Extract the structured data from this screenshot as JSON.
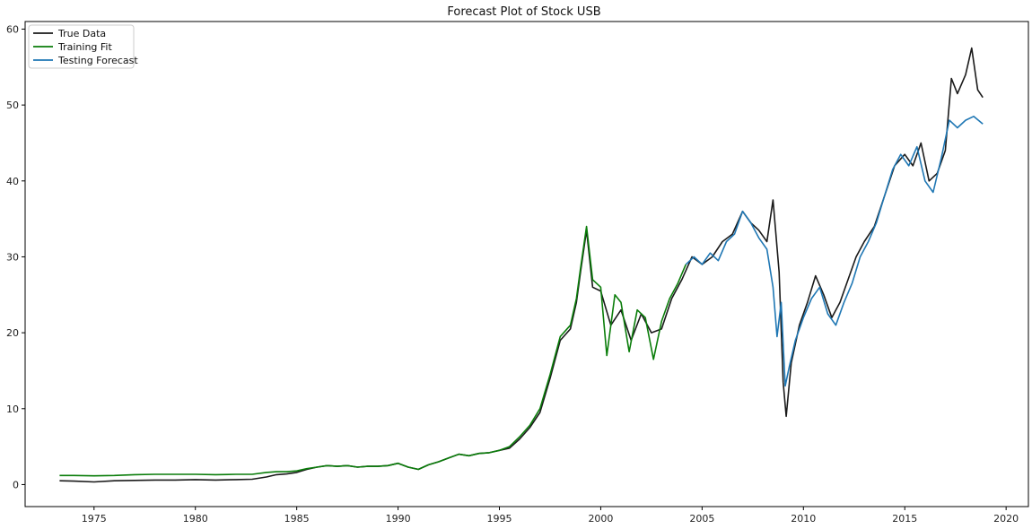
{
  "chart_data": {
    "type": "line",
    "title": "Forecast Plot of Stock USB",
    "xlabel": "",
    "ylabel": "",
    "xlim": [
      1971.6,
      2021.1
    ],
    "ylim": [
      -2.9,
      61.0
    ],
    "xticks": [
      1975,
      1980,
      1985,
      1990,
      1995,
      2000,
      2005,
      2010,
      2015,
      2020
    ],
    "yticks": [
      0,
      10,
      20,
      30,
      40,
      50,
      60
    ],
    "grid": false,
    "legend": {
      "position": "top-left",
      "entries": [
        "True Data",
        "Training Fit",
        "Testing Forecast"
      ]
    },
    "series": [
      {
        "name": "True Data",
        "color": "#1a1a1a",
        "x": [
          1973.3,
          1974.0,
          1975.0,
          1976.0,
          1977.0,
          1978.0,
          1979.0,
          1980.0,
          1981.0,
          1982.0,
          1982.8,
          1983.5,
          1984.0,
          1984.5,
          1985.0,
          1985.5,
          1986.0,
          1986.5,
          1987.0,
          1987.5,
          1988.0,
          1988.5,
          1989.0,
          1989.5,
          1990.0,
          1990.5,
          1991.0,
          1991.5,
          1992.0,
          1992.5,
          1993.0,
          1993.5,
          1994.0,
          1994.5,
          1995.0,
          1995.5,
          1996.0,
          1996.5,
          1997.0,
          1997.5,
          1998.0,
          1998.5,
          1998.8,
          1999.0,
          1999.3,
          1999.6,
          2000.0,
          2000.5,
          2001.0,
          2001.5,
          2002.0,
          2002.5,
          2003.0,
          2003.5,
          2004.0,
          2004.5,
          2005.0,
          2005.5,
          2006.0,
          2006.5,
          2007.0,
          2007.4,
          2007.8,
          2008.2,
          2008.5,
          2008.8,
          2009.0,
          2009.15,
          2009.4,
          2009.8,
          2010.2,
          2010.6,
          2011.0,
          2011.4,
          2011.8,
          2012.2,
          2012.6,
          2013.0,
          2013.5,
          2014.0,
          2014.5,
          2015.0,
          2015.4,
          2015.8,
          2016.2,
          2016.6,
          2017.0,
          2017.3,
          2017.6,
          2018.0,
          2018.3,
          2018.6,
          2018.85
        ],
        "y": [
          0.5,
          0.45,
          0.35,
          0.5,
          0.55,
          0.6,
          0.6,
          0.65,
          0.6,
          0.65,
          0.7,
          1.0,
          1.3,
          1.4,
          1.6,
          2.0,
          2.3,
          2.5,
          2.4,
          2.5,
          2.3,
          2.4,
          2.4,
          2.5,
          2.8,
          2.3,
          2.0,
          2.6,
          3.0,
          3.5,
          4.0,
          3.8,
          4.1,
          4.2,
          4.5,
          4.8,
          6.0,
          7.5,
          9.5,
          14.0,
          19.0,
          20.5,
          24.0,
          28.0,
          33.5,
          26.0,
          25.5,
          21.0,
          23.0,
          19.0,
          22.5,
          20.0,
          20.5,
          24.5,
          27.0,
          30.0,
          29.0,
          30.0,
          32.0,
          33.0,
          36.0,
          34.5,
          33.5,
          32.0,
          37.5,
          28.0,
          13.5,
          9.0,
          16.0,
          21.0,
          24.0,
          27.5,
          25.0,
          22.0,
          24.0,
          27.0,
          30.0,
          32.0,
          34.0,
          38.0,
          42.0,
          43.5,
          42.0,
          45.0,
          40.0,
          41.0,
          44.0,
          53.5,
          51.5,
          54.0,
          57.5,
          52.0,
          51.0
        ]
      },
      {
        "name": "Training Fit",
        "color": "#0a7d0a",
        "x": [
          1973.3,
          1974.0,
          1975.0,
          1976.0,
          1977.0,
          1978.0,
          1979.0,
          1980.0,
          1981.0,
          1982.0,
          1982.8,
          1983.5,
          1984.0,
          1984.5,
          1985.0,
          1985.5,
          1986.0,
          1986.5,
          1987.0,
          1987.5,
          1988.0,
          1988.5,
          1989.0,
          1989.5,
          1990.0,
          1990.5,
          1991.0,
          1991.5,
          1992.0,
          1992.5,
          1993.0,
          1993.5,
          1994.0,
          1994.5,
          1995.0,
          1995.5,
          1996.0,
          1996.5,
          1997.0,
          1997.5,
          1998.0,
          1998.5,
          1998.8,
          1999.0,
          1999.3,
          1999.6,
          2000.0,
          2000.3,
          2000.7,
          2001.0,
          2001.4,
          2001.8,
          2002.2,
          2002.6,
          2003.0,
          2003.4,
          2003.8,
          2004.2
        ],
        "y": [
          1.2,
          1.2,
          1.15,
          1.2,
          1.3,
          1.35,
          1.35,
          1.35,
          1.3,
          1.35,
          1.35,
          1.6,
          1.7,
          1.7,
          1.8,
          2.1,
          2.3,
          2.5,
          2.4,
          2.5,
          2.3,
          2.4,
          2.4,
          2.5,
          2.8,
          2.3,
          2.0,
          2.6,
          3.0,
          3.5,
          4.0,
          3.8,
          4.1,
          4.2,
          4.5,
          5.0,
          6.3,
          7.8,
          10.0,
          14.5,
          19.5,
          21.0,
          24.5,
          28.5,
          34.0,
          27.0,
          26.0,
          17.0,
          25.0,
          24.0,
          17.5,
          23.0,
          22.0,
          16.5,
          21.5,
          24.5,
          26.5,
          29.0
        ]
      },
      {
        "name": "Testing Forecast",
        "color": "#1f77b4",
        "x": [
          2004.2,
          2004.6,
          2005.0,
          2005.4,
          2005.8,
          2006.2,
          2006.6,
          2007.0,
          2007.4,
          2007.8,
          2008.2,
          2008.5,
          2008.7,
          2008.9,
          2009.1,
          2009.3,
          2009.6,
          2010.0,
          2010.4,
          2010.8,
          2011.2,
          2011.6,
          2012.0,
          2012.4,
          2012.8,
          2013.2,
          2013.6,
          2014.0,
          2014.4,
          2014.8,
          2015.2,
          2015.6,
          2016.0,
          2016.4,
          2016.8,
          2017.2,
          2017.6,
          2018.0,
          2018.4,
          2018.85
        ],
        "y": [
          29.0,
          30.0,
          29.0,
          30.5,
          29.5,
          32.0,
          33.0,
          36.0,
          34.5,
          32.5,
          31.0,
          26.0,
          19.5,
          24.0,
          13.0,
          15.5,
          19.0,
          22.0,
          24.5,
          26.0,
          22.5,
          21.0,
          24.0,
          26.5,
          30.0,
          32.0,
          34.5,
          38.0,
          41.5,
          43.5,
          42.0,
          44.5,
          40.0,
          38.5,
          43.0,
          48.0,
          47.0,
          48.0,
          48.5,
          47.5
        ]
      }
    ]
  }
}
